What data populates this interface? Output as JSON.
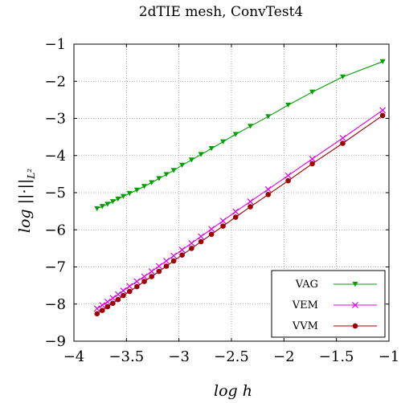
{
  "chart_data": {
    "type": "line",
    "title": "2dTIE mesh, ConvTest4",
    "xlabel": "log h",
    "ylabel": "log ||·||",
    "ylabel_sub": "L²",
    "xlim": [
      -4,
      -1
    ],
    "ylim": [
      -9,
      -1
    ],
    "xticks": [
      -4,
      -3.5,
      -3,
      -2.5,
      -2,
      -1.5,
      -1
    ],
    "xtick_labels": [
      "−4",
      "−3.5",
      "−3",
      "−2.5",
      "−2",
      "−1.5",
      "−1"
    ],
    "yticks": [
      -9,
      -8,
      -7,
      -6,
      -5,
      -4,
      -3,
      -2,
      -1
    ],
    "ytick_labels": [
      "−9",
      "−8",
      "−7",
      "−6",
      "−5",
      "−4",
      "−3",
      "−2",
      "−1"
    ],
    "grid": true,
    "legend_position": "bottom-right",
    "series": [
      {
        "name": "VAG",
        "color": "#00a000",
        "marker": "triangle-down",
        "x": [
          -3.78,
          -3.73,
          -3.68,
          -3.63,
          -3.58,
          -3.53,
          -3.47,
          -3.4,
          -3.33,
          -3.26,
          -3.19,
          -3.12,
          -3.05,
          -2.97,
          -2.88,
          -2.79,
          -2.69,
          -2.58,
          -2.46,
          -2.32,
          -2.15,
          -1.96,
          -1.73,
          -1.44,
          -1.06
        ],
        "values": [
          -5.43,
          -5.37,
          -5.31,
          -5.24,
          -5.17,
          -5.1,
          -5.02,
          -4.93,
          -4.83,
          -4.73,
          -4.62,
          -4.51,
          -4.4,
          -4.26,
          -4.12,
          -3.97,
          -3.81,
          -3.63,
          -3.43,
          -3.21,
          -2.95,
          -2.64,
          -2.29,
          -1.88,
          -1.47
        ]
      },
      {
        "name": "VEM",
        "color": "#e600e6",
        "marker": "cross",
        "x": [
          -3.78,
          -3.73,
          -3.68,
          -3.63,
          -3.58,
          -3.53,
          -3.47,
          -3.4,
          -3.33,
          -3.26,
          -3.19,
          -3.12,
          -3.05,
          -2.97,
          -2.88,
          -2.79,
          -2.69,
          -2.58,
          -2.46,
          -2.32,
          -2.15,
          -1.96,
          -1.73,
          -1.44,
          -1.06
        ],
        "values": [
          -8.12,
          -8.03,
          -7.94,
          -7.84,
          -7.74,
          -7.64,
          -7.52,
          -7.39,
          -7.26,
          -7.12,
          -6.98,
          -6.84,
          -6.7,
          -6.54,
          -6.36,
          -6.18,
          -5.98,
          -5.76,
          -5.51,
          -5.24,
          -4.91,
          -4.54,
          -4.09,
          -3.53,
          -2.78
        ]
      },
      {
        "name": "VVM",
        "color": "#a00000",
        "marker": "circle",
        "x": [
          -3.78,
          -3.73,
          -3.68,
          -3.63,
          -3.58,
          -3.53,
          -3.47,
          -3.4,
          -3.33,
          -3.26,
          -3.19,
          -3.12,
          -3.05,
          -2.97,
          -2.88,
          -2.79,
          -2.69,
          -2.58,
          -2.46,
          -2.32,
          -2.15,
          -1.96,
          -1.73,
          -1.44,
          -1.06
        ],
        "values": [
          -8.26,
          -8.17,
          -8.07,
          -7.98,
          -7.88,
          -7.77,
          -7.66,
          -7.53,
          -7.39,
          -7.26,
          -7.12,
          -6.98,
          -6.84,
          -6.68,
          -6.5,
          -6.32,
          -6.12,
          -5.9,
          -5.66,
          -5.38,
          -5.05,
          -4.68,
          -4.22,
          -3.67,
          -2.92
        ]
      }
    ]
  }
}
